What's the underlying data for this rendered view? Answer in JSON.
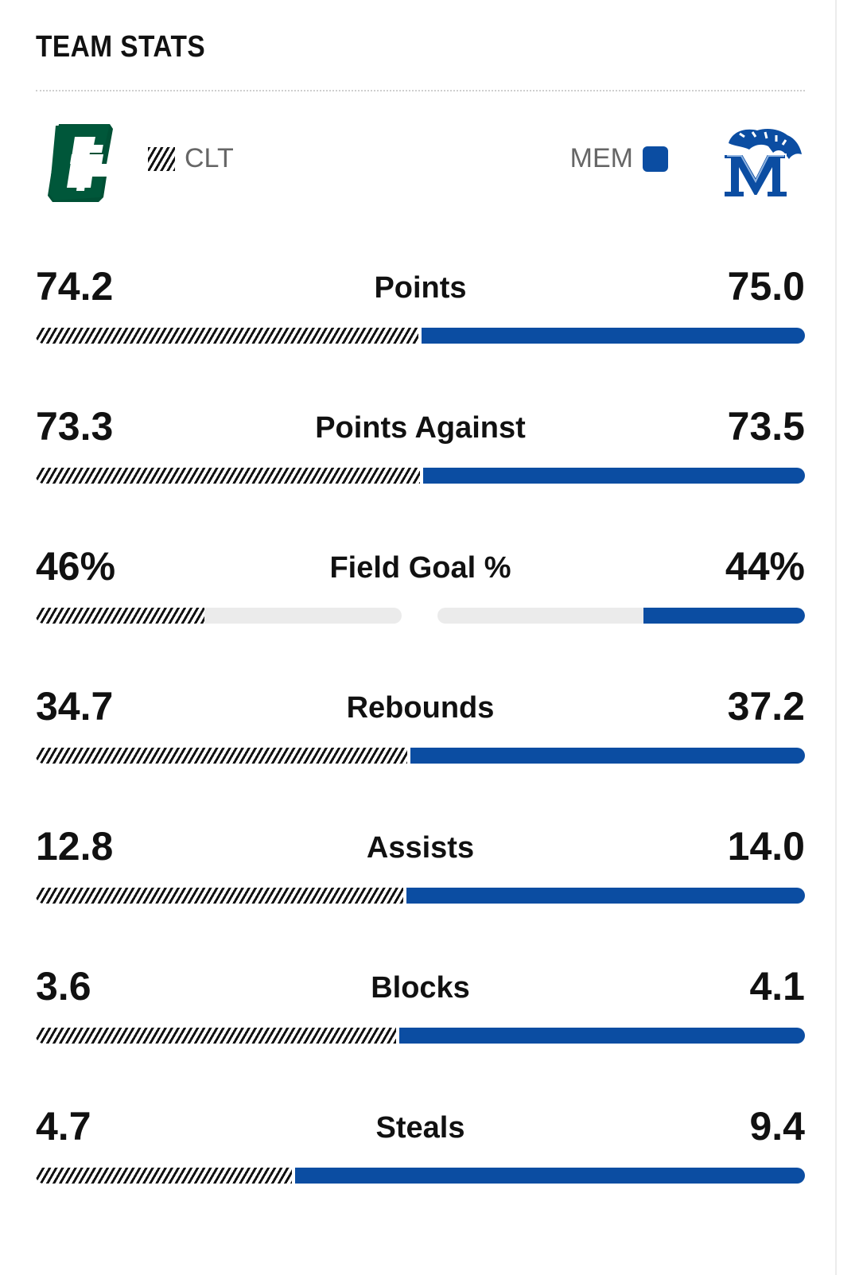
{
  "title": "TEAM STATS",
  "teams": {
    "left": {
      "abbr": "CLT",
      "logo": "charlotte-logo"
    },
    "right": {
      "abbr": "MEM",
      "logo": "memphis-logo",
      "color": "#0b4da2"
    }
  },
  "stats": [
    {
      "label": "Points",
      "left": "74.2",
      "right": "75.0",
      "left_share": 0.497,
      "mode": "split"
    },
    {
      "label": "Points Against",
      "left": "73.3",
      "right": "73.5",
      "left_share": 0.499,
      "mode": "split"
    },
    {
      "label": "Field Goal %",
      "left": "46%",
      "right": "44%",
      "left_fill": 0.46,
      "right_fill": 0.44,
      "mode": "percent"
    },
    {
      "label": "Rebounds",
      "left": "34.7",
      "right": "37.2",
      "left_share": 0.483,
      "mode": "split"
    },
    {
      "label": "Assists",
      "left": "12.8",
      "right": "14.0",
      "left_share": 0.478,
      "mode": "split"
    },
    {
      "label": "Blocks",
      "left": "3.6",
      "right": "4.1",
      "left_share": 0.468,
      "mode": "split"
    },
    {
      "label": "Steals",
      "left": "4.7",
      "right": "9.4",
      "left_share": 0.333,
      "mode": "split"
    }
  ]
}
